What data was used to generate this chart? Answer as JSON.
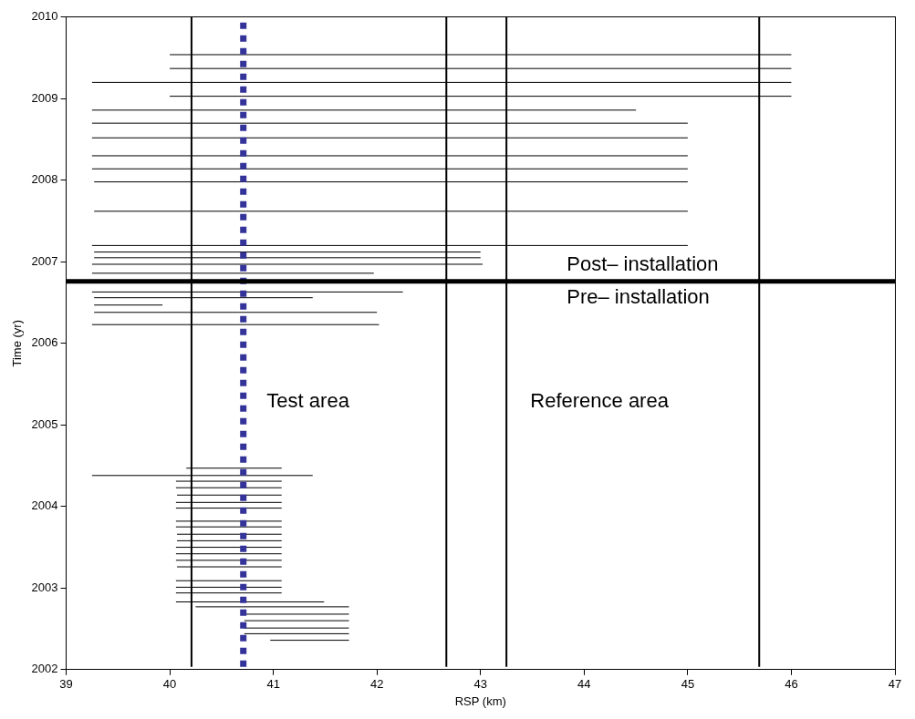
{
  "chart_data": {
    "type": "line",
    "xlabel": "RSP (km)",
    "ylabel": "Time (yr)",
    "xlim": [
      39,
      47
    ],
    "xticks": [
      39,
      40,
      41,
      42,
      43,
      44,
      45,
      46,
      47
    ],
    "ylim": [
      2002,
      2010
    ],
    "yticks": [
      2002,
      2003,
      2004,
      2005,
      2006,
      2007,
      2008,
      2009,
      2010
    ],
    "grid": false,
    "legend": false,
    "marker": "none",
    "line_style": "solid",
    "series": [
      {
        "color": "#000000",
        "x": [
          40.0,
          46.0
        ],
        "values": [
          2009.54,
          2009.54
        ]
      },
      {
        "color": "#000000",
        "x": [
          40.0,
          46.0
        ],
        "values": [
          2009.37,
          2009.37
        ]
      },
      {
        "color": "#000000",
        "x": [
          39.25,
          46.0
        ],
        "values": [
          2009.2,
          2009.2
        ]
      },
      {
        "color": "#000000",
        "x": [
          40.0,
          46.0
        ],
        "values": [
          2009.03,
          2009.03
        ]
      },
      {
        "color": "#000000",
        "x": [
          39.25,
          44.5
        ],
        "values": [
          2008.86,
          2008.86
        ]
      },
      {
        "color": "#000000",
        "x": [
          39.25,
          45.0
        ],
        "values": [
          2008.7,
          2008.7
        ]
      },
      {
        "color": "#000000",
        "x": [
          39.25,
          45.0
        ],
        "values": [
          2008.52,
          2008.52
        ]
      },
      {
        "color": "#000000",
        "x": [
          39.25,
          45.0
        ],
        "values": [
          2008.3,
          2008.3
        ]
      },
      {
        "color": "#000000",
        "x": [
          39.25,
          45.0
        ],
        "values": [
          2008.14,
          2008.14
        ]
      },
      {
        "color": "#000000",
        "x": [
          39.27,
          45.0
        ],
        "values": [
          2007.98,
          2007.98
        ]
      },
      {
        "color": "#000000",
        "x": [
          39.27,
          45.0
        ],
        "values": [
          2007.62,
          2007.62
        ]
      },
      {
        "color": "#000000",
        "x": [
          39.25,
          45.0
        ],
        "values": [
          2007.2,
          2007.2
        ]
      },
      {
        "color": "#000000",
        "x": [
          39.27,
          43.0
        ],
        "values": [
          2007.12,
          2007.12
        ]
      },
      {
        "color": "#000000",
        "x": [
          39.27,
          43.0
        ],
        "values": [
          2007.05,
          2007.05
        ]
      },
      {
        "color": "#000000",
        "x": [
          39.25,
          43.02
        ],
        "values": [
          2006.97,
          2006.97
        ]
      },
      {
        "color": "#000000",
        "x": [
          39.25,
          41.97
        ],
        "values": [
          2006.86,
          2006.86
        ]
      },
      {
        "color": "#000000",
        "x": [
          39.25,
          42.25
        ],
        "values": [
          2006.63,
          2006.63
        ]
      },
      {
        "color": "#000000",
        "x": [
          39.27,
          41.38
        ],
        "values": [
          2006.56,
          2006.56
        ]
      },
      {
        "color": "#000000",
        "x": [
          39.27,
          39.93
        ],
        "values": [
          2006.47,
          2006.47
        ]
      },
      {
        "color": "#000000",
        "x": [
          39.27,
          42.0
        ],
        "values": [
          2006.38,
          2006.38
        ]
      },
      {
        "color": "#000000",
        "x": [
          39.25,
          42.02
        ],
        "values": [
          2006.23,
          2006.23
        ]
      },
      {
        "color": "#000000",
        "x": [
          40.16,
          41.08
        ],
        "values": [
          2004.47,
          2004.47
        ]
      },
      {
        "color": "#000000",
        "x": [
          39.25,
          41.38
        ],
        "values": [
          2004.38,
          2004.38
        ]
      },
      {
        "color": "#000000",
        "x": [
          40.06,
          41.08
        ],
        "values": [
          2004.31,
          2004.31
        ]
      },
      {
        "color": "#000000",
        "x": [
          40.06,
          41.08
        ],
        "values": [
          2004.23,
          2004.23
        ]
      },
      {
        "color": "#000000",
        "x": [
          40.07,
          41.08
        ],
        "values": [
          2004.14,
          2004.14
        ]
      },
      {
        "color": "#000000",
        "x": [
          40.06,
          41.08
        ],
        "values": [
          2004.05,
          2004.05
        ]
      },
      {
        "color": "#000000",
        "x": [
          40.06,
          41.08
        ],
        "values": [
          2003.98,
          2003.98
        ]
      },
      {
        "color": "#000000",
        "x": [
          40.06,
          41.08
        ],
        "values": [
          2003.82,
          2003.82
        ]
      },
      {
        "color": "#000000",
        "x": [
          40.06,
          41.08
        ],
        "values": [
          2003.75,
          2003.75
        ]
      },
      {
        "color": "#000000",
        "x": [
          40.07,
          41.08
        ],
        "values": [
          2003.66,
          2003.66
        ]
      },
      {
        "color": "#000000",
        "x": [
          40.07,
          41.08
        ],
        "values": [
          2003.58,
          2003.58
        ]
      },
      {
        "color": "#000000",
        "x": [
          40.06,
          41.08
        ],
        "values": [
          2003.5,
          2003.5
        ]
      },
      {
        "color": "#000000",
        "x": [
          40.06,
          41.08
        ],
        "values": [
          2003.42,
          2003.42
        ]
      },
      {
        "color": "#000000",
        "x": [
          40.06,
          41.08
        ],
        "values": [
          2003.34,
          2003.34
        ]
      },
      {
        "color": "#000000",
        "x": [
          40.07,
          41.08
        ],
        "values": [
          2003.26,
          2003.26
        ]
      },
      {
        "color": "#000000",
        "x": [
          40.06,
          41.08
        ],
        "values": [
          2003.09,
          2003.09
        ]
      },
      {
        "color": "#000000",
        "x": [
          40.06,
          41.08
        ],
        "values": [
          2003.01,
          2003.01
        ]
      },
      {
        "color": "#000000",
        "x": [
          40.06,
          41.08
        ],
        "values": [
          2002.94,
          2002.94
        ]
      },
      {
        "color": "#000000",
        "x": [
          40.06,
          41.49
        ],
        "values": [
          2002.83,
          2002.83
        ]
      },
      {
        "color": "#000000",
        "x": [
          40.25,
          41.73
        ],
        "values": [
          2002.77,
          2002.77
        ]
      },
      {
        "color": "#000000",
        "x": [
          40.72,
          41.73
        ],
        "values": [
          2002.68,
          2002.68
        ]
      },
      {
        "color": "#000000",
        "x": [
          40.72,
          41.73
        ],
        "values": [
          2002.6,
          2002.6
        ]
      },
      {
        "color": "#000000",
        "x": [
          40.72,
          41.73
        ],
        "values": [
          2002.51,
          2002.51
        ]
      },
      {
        "color": "#000000",
        "x": [
          40.72,
          41.73
        ],
        "values": [
          2002.44,
          2002.44
        ]
      },
      {
        "color": "#000000",
        "x": [
          40.97,
          41.73
        ],
        "values": [
          2002.36,
          2002.36
        ]
      }
    ],
    "ref_lines": [
      {
        "axis": "x",
        "value": 40.21,
        "color": "#000000",
        "line_style": "solid"
      },
      {
        "axis": "x",
        "value": 42.67,
        "color": "#000000",
        "line_style": "solid"
      },
      {
        "axis": "x",
        "value": 43.25,
        "color": "#000000",
        "line_style": "solid"
      },
      {
        "axis": "x",
        "value": 45.69,
        "color": "#000000",
        "line_style": "solid"
      },
      {
        "axis": "x",
        "value": 40.71,
        "color": "#333399",
        "line_style": "dotted"
      },
      {
        "axis": "y",
        "value": 2006.76,
        "color": "#000000",
        "line_style": "solid"
      }
    ],
    "annotations": [
      "Post– installation",
      "Pre– installation",
      "Test area",
      "Reference area"
    ]
  }
}
